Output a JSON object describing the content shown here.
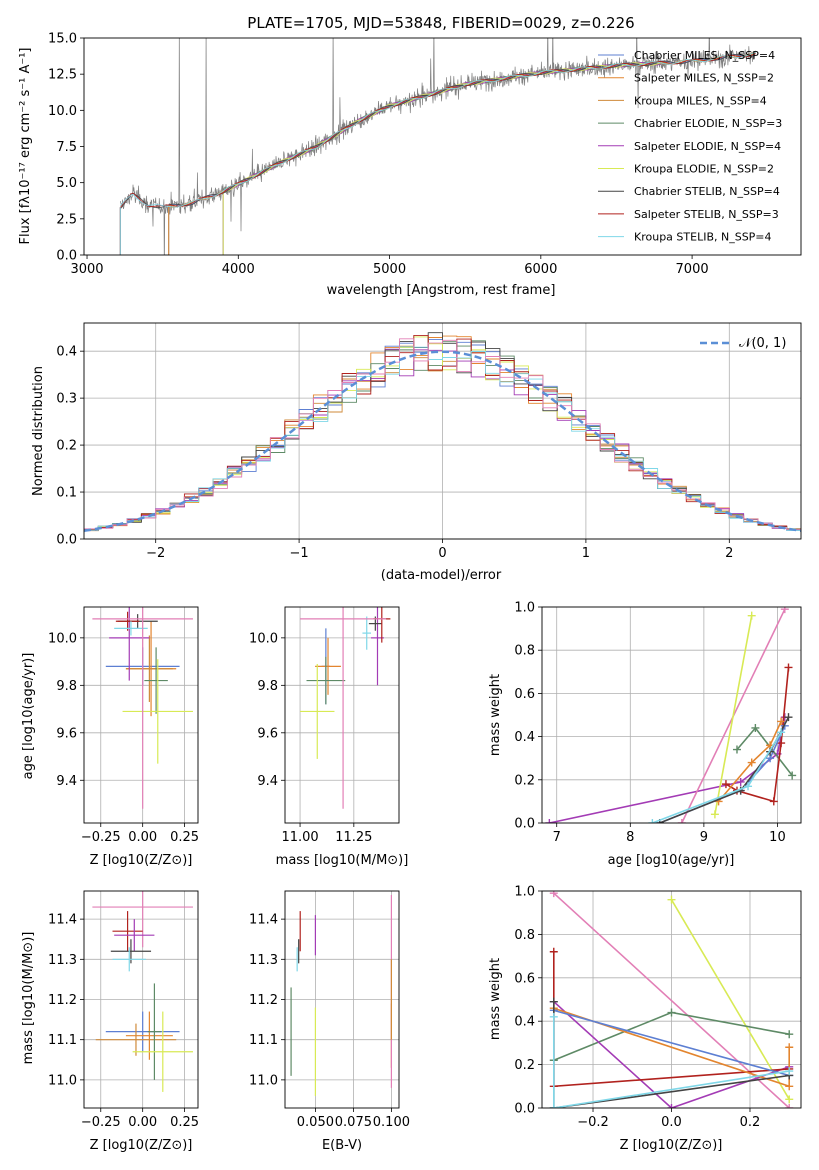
{
  "chart_data": [
    {
      "type": "line",
      "title": "PLATE=1705, MJD=53848, FIBERID=0029, z=0.226",
      "xlabel": "wavelength [Angstrom, rest frame]",
      "ylabel": "Flux [fλ10⁻¹⁷ erg cm⁻² s⁻¹ A⁻¹]",
      "xlim": [
        2980,
        7720
      ],
      "ylim": [
        0,
        15
      ],
      "xticks": [
        3000,
        4000,
        5000,
        6000,
        7000
      ],
      "yticks": [
        0.0,
        2.5,
        5.0,
        7.5,
        10.0,
        12.5,
        15.0
      ],
      "grid": false,
      "legend_position": "right",
      "series": [
        {
          "name": "Chabrier MILES, N_SSP=4",
          "color": "#5d7fd2",
          "values": [
            [
              3540,
              3.2
            ],
            [
              4000,
              4.9
            ],
            [
              4500,
              7.4
            ],
            [
              5000,
              10.3
            ],
            [
              5500,
              11.8
            ],
            [
              6000,
              12.6
            ],
            [
              6500,
              13.1
            ],
            [
              7000,
              13.4
            ],
            [
              7420,
              13.9
            ]
          ]
        },
        {
          "name": "Salpeter MILES, N_SSP=2",
          "color": "#e3852f",
          "values": [
            [
              3540,
              3.2
            ],
            [
              4000,
              4.9
            ],
            [
              4500,
              7.4
            ],
            [
              5000,
              10.3
            ],
            [
              5500,
              11.8
            ],
            [
              6000,
              12.6
            ],
            [
              6500,
              13.1
            ],
            [
              7000,
              13.4
            ],
            [
              7420,
              13.9
            ]
          ]
        },
        {
          "name": "Kroupa MILES, N_SSP=4",
          "color": "#cf8a3a",
          "values": [
            [
              3540,
              3.2
            ],
            [
              4000,
              4.9
            ],
            [
              4500,
              7.4
            ],
            [
              5000,
              10.3
            ],
            [
              5500,
              11.8
            ],
            [
              6000,
              12.6
            ],
            [
              6500,
              13.1
            ],
            [
              7000,
              13.4
            ],
            [
              7420,
              13.9
            ]
          ]
        },
        {
          "name": "Chabrier ELODIE, N_SSP=3",
          "color": "#5e8a66",
          "values": [
            [
              3900,
              4.4
            ],
            [
              4200,
              6.1
            ],
            [
              4500,
              7.4
            ],
            [
              5000,
              10.3
            ],
            [
              5500,
              11.8
            ],
            [
              6000,
              12.6
            ],
            [
              6500,
              13.1
            ],
            [
              6800,
              13.2
            ]
          ]
        },
        {
          "name": "Salpeter ELODIE, N_SSP=4",
          "color": "#a33bb5",
          "values": [
            [
              3900,
              4.4
            ],
            [
              4200,
              6.1
            ],
            [
              4500,
              7.4
            ],
            [
              5000,
              10.3
            ],
            [
              5500,
              11.8
            ],
            [
              6000,
              12.6
            ],
            [
              6500,
              13.1
            ],
            [
              6800,
              13.2
            ]
          ]
        },
        {
          "name": "Kroupa ELODIE, N_SSP=2",
          "color": "#d8ea55",
          "values": [
            [
              3900,
              4.4
            ],
            [
              4200,
              6.1
            ],
            [
              4500,
              7.4
            ],
            [
              5000,
              10.3
            ],
            [
              5500,
              11.8
            ],
            [
              6000,
              12.6
            ],
            [
              6500,
              13.1
            ],
            [
              6800,
              13.2
            ]
          ]
        },
        {
          "name": "Chabrier STELIB, N_SSP=4",
          "color": "#444444",
          "values": [
            [
              3220,
              3.3
            ],
            [
              3500,
              3.3
            ],
            [
              4000,
              4.9
            ],
            [
              4500,
              7.4
            ],
            [
              5000,
              10.3
            ],
            [
              5500,
              11.8
            ],
            [
              6000,
              12.6
            ],
            [
              6500,
              13.1
            ],
            [
              7000,
              13.4
            ],
            [
              7420,
              13.9
            ]
          ]
        },
        {
          "name": "Salpeter STELIB, N_SSP=3",
          "color": "#b1221e",
          "values": [
            [
              3220,
              3.3
            ],
            [
              3500,
              3.3
            ],
            [
              4000,
              4.9
            ],
            [
              4500,
              7.4
            ],
            [
              5000,
              10.3
            ],
            [
              5500,
              11.8
            ],
            [
              6000,
              12.6
            ],
            [
              6500,
              13.1
            ],
            [
              7000,
              13.4
            ],
            [
              7420,
              13.9
            ]
          ]
        },
        {
          "name": "Kroupa STELIB, N_SSP=4",
          "color": "#7fd7e8",
          "values": [
            [
              3220,
              3.3
            ],
            [
              3500,
              3.3
            ],
            [
              4000,
              4.9
            ],
            [
              4500,
              7.4
            ],
            [
              5000,
              10.3
            ],
            [
              5500,
              11.8
            ],
            [
              6000,
              12.6
            ],
            [
              6500,
              13.1
            ],
            [
              7000,
              13.4
            ],
            [
              7420,
              13.9
            ]
          ]
        }
      ],
      "observed_spectrum_color": "#808080"
    },
    {
      "type": "area",
      "xlabel": "(data-model)/error",
      "ylabel": "Normed distribution",
      "xlim": [
        -2.5,
        2.5
      ],
      "ylim": [
        0,
        0.46
      ],
      "xticks": [
        -2,
        -1,
        0,
        1,
        2
      ],
      "yticks": [
        0.0,
        0.1,
        0.2,
        0.3,
        0.4
      ],
      "grid": true,
      "legend_position": "top-right",
      "legend": [
        "𝒩(0, 1)"
      ],
      "reference_curve_color": "#5b8fd6"
    },
    {
      "type": "scatter",
      "xlabel": "Z [log10(Z/Z⊙)]",
      "ylabel": "age  [log10(age/yr)]",
      "xlim": [
        -0.35,
        0.33
      ],
      "ylim": [
        9.22,
        10.13
      ],
      "xticks": [
        -0.25,
        0.0,
        0.25
      ],
      "yticks": [
        9.4,
        9.6,
        9.8,
        10.0
      ],
      "grid": true,
      "points": [
        {
          "color": "#5d7fd2",
          "x": 0.0,
          "xerr": 0.22,
          "y": 9.88,
          "yerr": 0.08
        },
        {
          "color": "#e3852f",
          "x": 0.05,
          "xerr": 0.15,
          "y": 9.87,
          "yerr": 0.2
        },
        {
          "color": "#cf8a3a",
          "x": 0.04,
          "xerr": 0.14,
          "y": 9.87,
          "yerr": 0.14
        },
        {
          "color": "#5e8a66",
          "x": 0.08,
          "xerr": 0.07,
          "y": 9.82,
          "yerr": 0.14
        },
        {
          "color": "#a33bb5",
          "x": -0.08,
          "xerr": 0.12,
          "y": 10.0,
          "yerr": 0.18
        },
        {
          "color": "#d8ea55",
          "x": 0.09,
          "xerr": 0.21,
          "y": 9.69,
          "yerr": 0.22
        },
        {
          "color": "#444444",
          "x": -0.03,
          "xerr": 0.12,
          "y": 10.07,
          "yerr": 0.03
        },
        {
          "color": "#b1221e",
          "x": -0.09,
          "xerr": 0.07,
          "y": 10.07,
          "yerr": 0.04
        },
        {
          "color": "#7fd7e8",
          "x": -0.07,
          "xerr": 0.1,
          "y": 10.04,
          "yerr": 0.03
        },
        {
          "color": "#e27fb6",
          "x": 0.0,
          "xerr": 0.3,
          "y": 10.08,
          "yerr": 0.8
        }
      ]
    },
    {
      "type": "scatter",
      "xlabel": "mass [log10(M/M⊙)]",
      "ylabel": "",
      "xlim": [
        10.93,
        11.46
      ],
      "ylim": [
        9.22,
        10.13
      ],
      "xticks": [
        11.0,
        11.25
      ],
      "yticks": [
        9.4,
        9.6,
        9.8,
        10.0
      ],
      "grid": true,
      "points": [
        {
          "color": "#5d7fd2",
          "x": 11.12,
          "xerr": 0.02,
          "y": 9.88,
          "yerr": 0.16
        },
        {
          "color": "#e3852f",
          "x": 11.13,
          "xerr": 0.06,
          "y": 9.88,
          "yerr": 0.12
        },
        {
          "color": "#5e8a66",
          "x": 11.12,
          "xerr": 0.09,
          "y": 9.82,
          "yerr": 0.1
        },
        {
          "color": "#d8ea55",
          "x": 11.08,
          "xerr": 0.08,
          "y": 9.69,
          "yerr": 0.2
        },
        {
          "color": "#a33bb5",
          "x": 11.36,
          "xerr": 0.03,
          "y": 10.0,
          "yerr": 0.2
        },
        {
          "color": "#444444",
          "x": 11.35,
          "xerr": 0.03,
          "y": 10.06,
          "yerr": 0.03
        },
        {
          "color": "#b1221e",
          "x": 11.38,
          "xerr": 0.04,
          "y": 10.08,
          "yerr": 0.1
        },
        {
          "color": "#7fd7e8",
          "x": 11.31,
          "xerr": 0.02,
          "y": 10.02,
          "yerr": 0.07
        },
        {
          "color": "#e27fb6",
          "x": 11.2,
          "xerr": 0.2,
          "y": 10.08,
          "yerr": 0.8
        }
      ]
    },
    {
      "type": "line",
      "xlabel": "age  [log10(age/yr)]",
      "ylabel": "mass weight",
      "xlim": [
        6.8,
        10.32
      ],
      "ylim": [
        0,
        1.0
      ],
      "xticks": [
        7,
        8,
        9,
        10
      ],
      "yticks": [
        0.0,
        0.2,
        0.4,
        0.6,
        0.8,
        1.0
      ],
      "grid": true,
      "series": [
        {
          "color": "#a33bb5",
          "x": [
            6.9,
            9.5,
            10.0,
            10.1
          ],
          "y": [
            0.0,
            0.19,
            0.32,
            0.49
          ]
        },
        {
          "color": "#e27fb6",
          "x": [
            8.7,
            10.1
          ],
          "y": [
            0.0,
            0.99
          ]
        },
        {
          "color": "#d8ea55",
          "x": [
            9.15,
            9.65
          ],
          "y": [
            0.04,
            0.96
          ]
        },
        {
          "color": "#5e8a66",
          "x": [
            9.45,
            9.7,
            10.2
          ],
          "y": [
            0.34,
            0.44,
            0.22
          ]
        },
        {
          "color": "#b1221e",
          "x": [
            9.3,
            9.45,
            9.95,
            10.05,
            10.15
          ],
          "y": [
            0.18,
            0.15,
            0.1,
            0.37,
            0.72
          ]
        },
        {
          "color": "#e3852f",
          "x": [
            9.2,
            9.65,
            9.9,
            10.05
          ],
          "y": [
            0.1,
            0.28,
            0.36,
            0.47
          ]
        },
        {
          "color": "#5d7fd2",
          "x": [
            8.4,
            9.5,
            9.9,
            10.1
          ],
          "y": [
            0.0,
            0.15,
            0.3,
            0.45
          ]
        },
        {
          "color": "#444444",
          "x": [
            8.4,
            9.5,
            9.9,
            10.15
          ],
          "y": [
            0.0,
            0.15,
            0.33,
            0.49
          ]
        },
        {
          "color": "#7fd7e8",
          "x": [
            8.3,
            9.6,
            10.05
          ],
          "y": [
            0.0,
            0.17,
            0.42
          ]
        }
      ]
    },
    {
      "type": "scatter",
      "xlabel": "Z [log10(Z/Z⊙)]",
      "ylabel": "mass [log10(M/M⊙)]",
      "xlim": [
        -0.35,
        0.33
      ],
      "ylim": [
        10.93,
        11.47
      ],
      "xticks": [
        -0.25,
        0.0,
        0.25
      ],
      "yticks": [
        11.0,
        11.1,
        11.2,
        11.3,
        11.4
      ],
      "grid": true,
      "points": [
        {
          "color": "#e27fb6",
          "x": 0.0,
          "xerr": 0.3,
          "y": 11.43,
          "yerr": 0.1
        },
        {
          "color": "#b1221e",
          "x": -0.09,
          "xerr": 0.09,
          "y": 11.37,
          "yerr": 0.05
        },
        {
          "color": "#a33bb5",
          "x": -0.05,
          "xerr": 0.12,
          "y": 11.36,
          "yerr": 0.04
        },
        {
          "color": "#444444",
          "x": -0.07,
          "xerr": 0.12,
          "y": 11.32,
          "yerr": 0.03
        },
        {
          "color": "#7fd7e8",
          "x": -0.08,
          "xerr": 0.1,
          "y": 11.3,
          "yerr": 0.03
        },
        {
          "color": "#5d7fd2",
          "x": 0.0,
          "xerr": 0.22,
          "y": 11.12,
          "yerr": 0.05
        },
        {
          "color": "#e3852f",
          "x": 0.04,
          "xerr": 0.14,
          "y": 11.11,
          "yerr": 0.06
        },
        {
          "color": "#cf8a3a",
          "x": -0.04,
          "xerr": 0.24,
          "y": 11.1,
          "yerr": 0.04
        },
        {
          "color": "#5e8a66",
          "x": 0.07,
          "xerr": 0.04,
          "y": 11.12,
          "yerr": 0.12
        },
        {
          "color": "#d8ea55",
          "x": 0.12,
          "xerr": 0.18,
          "y": 11.07,
          "yerr": 0.1
        }
      ]
    },
    {
      "type": "scatter",
      "xlabel": "E(B-V)",
      "ylabel": "",
      "xlim": [
        0.03,
        0.105
      ],
      "ylim": [
        10.93,
        11.47
      ],
      "xticks": [
        0.05,
        0.075,
        0.1
      ],
      "xticklabels": [
        "0.050",
        "0.075",
        "0.100"
      ],
      "yticks": [
        11.0,
        11.1,
        11.2,
        11.3,
        11.4
      ],
      "grid": true,
      "points": [
        {
          "color": "#5e8a66",
          "x": 0.034,
          "y": 11.12,
          "yerr": 0.11
        },
        {
          "color": "#7fd7e8",
          "x": 0.038,
          "y": 11.3,
          "yerr": 0.03
        },
        {
          "color": "#444444",
          "x": 0.039,
          "y": 11.32,
          "yerr": 0.03
        },
        {
          "color": "#b1221e",
          "x": 0.04,
          "y": 11.37,
          "yerr": 0.05
        },
        {
          "color": "#a33bb5",
          "x": 0.05,
          "y": 11.36,
          "yerr": 0.05
        },
        {
          "color": "#d8ea55",
          "x": 0.05,
          "y": 11.07,
          "yerr": 0.11
        },
        {
          "color": "#e3852f",
          "x": 0.1,
          "y": 11.11,
          "yerr": 0.08
        },
        {
          "color": "#e27fb6",
          "x": 0.1,
          "y": 11.22,
          "yerr": 0.24
        },
        {
          "color": "#cf8a3a",
          "x": 0.1,
          "y": 11.2,
          "yerr": 0.1
        }
      ]
    },
    {
      "type": "line",
      "xlabel": "Z [log10(Z/Z⊙)]",
      "ylabel": "mass weight",
      "xlim": [
        -0.33,
        0.33
      ],
      "ylim": [
        0,
        1.0
      ],
      "xticks": [
        -0.2,
        0.0,
        0.2
      ],
      "yticks": [
        0.0,
        0.2,
        0.4,
        0.6,
        0.8,
        1.0
      ],
      "grid": true,
      "series": [
        {
          "color": "#e27fb6",
          "x": [
            -0.3,
            0.3
          ],
          "y": [
            0.99,
            0.0
          ]
        },
        {
          "color": "#d8ea55",
          "x": [
            0.0,
            0.3
          ],
          "y": [
            0.96,
            0.04
          ]
        },
        {
          "color": "#5e8a66",
          "x": [
            -0.3,
            0.0,
            0.3
          ],
          "y": [
            0.22,
            0.44,
            0.34
          ]
        },
        {
          "color": "#a33bb5",
          "x": [
            -0.3,
            0.0,
            0.3
          ],
          "y": [
            0.49,
            0.0,
            0.19
          ]
        },
        {
          "color": "#b1221e",
          "x": [
            -0.3,
            -0.3,
            0.3
          ],
          "y": [
            0.72,
            0.1,
            0.18
          ]
        },
        {
          "color": "#e3852f",
          "x": [
            -0.3,
            0.3,
            0.3
          ],
          "y": [
            0.46,
            0.1,
            0.28
          ]
        },
        {
          "color": "#5d7fd2",
          "x": [
            -0.3,
            0.3
          ],
          "y": [
            0.45,
            0.15
          ]
        },
        {
          "color": "#444444",
          "x": [
            -0.3,
            -0.3,
            0.3
          ],
          "y": [
            0.49,
            0.0,
            0.15
          ]
        },
        {
          "color": "#7fd7e8",
          "x": [
            -0.3,
            -0.3,
            0.3
          ],
          "y": [
            0.42,
            0.0,
            0.17
          ]
        }
      ]
    }
  ]
}
